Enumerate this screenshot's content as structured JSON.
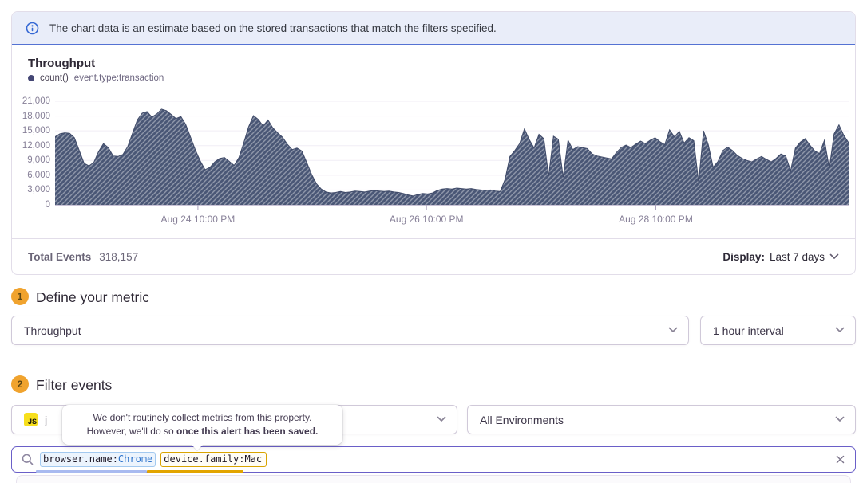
{
  "banner": {
    "text": "The chart data is an estimate based on the stored transactions that match the filters specified."
  },
  "chart_data": {
    "type": "area",
    "title": "Throughput",
    "series": [
      {
        "name": "count()",
        "filter": "event.type:transaction",
        "values": [
          13800,
          14400,
          14600,
          14500,
          13600,
          11000,
          8400,
          7900,
          8600,
          10800,
          12400,
          11600,
          9900,
          9800,
          10200,
          11800,
          14500,
          17200,
          18600,
          18900,
          17800,
          18400,
          19400,
          19100,
          18300,
          17500,
          17900,
          16300,
          13700,
          11100,
          8900,
          7100,
          7600,
          8700,
          9400,
          9600,
          8800,
          8000,
          9600,
          12600,
          15800,
          18100,
          17300,
          16000,
          17200,
          15600,
          14600,
          13700,
          12300,
          11200,
          11500,
          10900,
          8600,
          6200,
          4300,
          3200,
          2600,
          2400,
          2500,
          2700,
          2500,
          2600,
          2800,
          2700,
          2600,
          2800,
          2900,
          2800,
          2700,
          2800,
          2600,
          2500,
          2300,
          2000,
          1800,
          2100,
          2300,
          2200,
          2400,
          2900,
          3200,
          3300,
          3200,
          3400,
          3300,
          3200,
          3300,
          3100,
          3000,
          2900,
          3000,
          2800,
          2700,
          5200,
          9800,
          11000,
          12400,
          15400,
          13200,
          11500,
          14300,
          13400,
          5800,
          13900,
          13300,
          5600,
          13100,
          11200,
          11800,
          11600,
          11400,
          10300,
          9900,
          9700,
          9500,
          9300,
          10600,
          11600,
          12100,
          11600,
          12300,
          12900,
          12400,
          13100,
          13600,
          12800,
          12200,
          15200,
          13800,
          14900,
          12500,
          13600,
          13000,
          4600,
          15000,
          12200,
          7600,
          8800,
          11000,
          11700,
          11000,
          10000,
          9400,
          9000,
          8700,
          9300,
          9800,
          9200,
          8700,
          9400,
          10300,
          9900,
          6900,
          11500,
          12700,
          13400,
          12100,
          10900,
          10400,
          13100,
          7400,
          14400,
          16200,
          14100,
          12600
        ]
      }
    ],
    "ylim": [
      0,
      21000
    ],
    "yticks": [
      0,
      3000,
      6000,
      9000,
      12000,
      15000,
      18000,
      21000
    ],
    "ytick_labels": [
      "0",
      "3,000",
      "6,000",
      "9,000",
      "12,000",
      "15,000",
      "18,000",
      "21,000"
    ],
    "xticks": [
      {
        "label": "Aug 24 10:00 PM",
        "pos": 0.18
      },
      {
        "label": "Aug 26 10:00 PM",
        "pos": 0.468
      },
      {
        "label": "Aug 28 10:00 PM",
        "pos": 0.757
      }
    ],
    "grid": "horizontal",
    "legend_position": "top-left",
    "area_color": "#4a5776",
    "hatch_color": "rgba(255,255,255,0.38)"
  },
  "summary": {
    "total_label": "Total Events",
    "total_value": "318,157",
    "display_label": "Display:",
    "display_value": "Last 7 days"
  },
  "steps": {
    "define": {
      "number": "1",
      "title": "Define your metric"
    },
    "filter": {
      "number": "2",
      "title": "Filter events"
    }
  },
  "controls": {
    "metric": {
      "value": "Throughput"
    },
    "interval": {
      "value": "1 hour interval"
    },
    "project": {
      "icon": "javascript-platform-icon",
      "visible_label": "j"
    },
    "environment": {
      "value": "All Environments"
    }
  },
  "tooltip": {
    "line1": "We don't routinely collect metrics from this property.",
    "line2_prefix": "However, we'll do so ",
    "line2_bold": "once this alert has been saved."
  },
  "search": {
    "tokens": [
      {
        "key": "browser.name:",
        "value": "Chrome",
        "state": "valid"
      },
      {
        "key": "device.family:",
        "value": "Mac",
        "state": "warning"
      }
    ]
  },
  "colors": {
    "accent_purple": "#6a5fc8",
    "banner_bg": "#e9edf9",
    "banner_border": "#5472d3",
    "step_circle": "#f0a32e",
    "token_valid_border": "#a3c9ef",
    "token_warn_border": "#d9a400",
    "chart_fill": "#4a5776"
  }
}
